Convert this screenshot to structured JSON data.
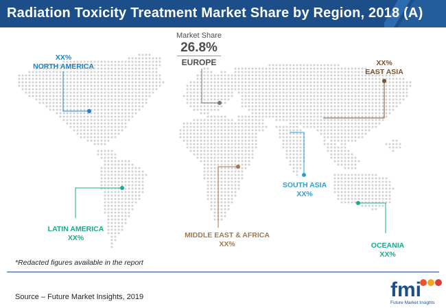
{
  "title": "Radiation Toxicity Treatment Market Share by Region, 2018 (A)",
  "chart_data": {
    "type": "map",
    "title": "Radiation Toxicity Treatment Market Share by Region, 2018 (A)",
    "highlight": {
      "caption": "Market Share",
      "value": "26.8%",
      "region": "EUROPE"
    },
    "regions": [
      {
        "key": "north_america",
        "name": "NORTH AMERICA",
        "value": "XX%",
        "color": "#1f82c4"
      },
      {
        "key": "latin_america",
        "name": "LATIN AMERICA",
        "value": "XX%",
        "color": "#19a98a"
      },
      {
        "key": "middle_east_africa",
        "name": "MIDDLE EAST & AFRICA",
        "value": "XX%",
        "color": "#a0794f"
      },
      {
        "key": "east_asia",
        "name": "EAST ASIA",
        "value": "XX%",
        "color": "#7a5230"
      },
      {
        "key": "south_asia",
        "name": "SOUTH ASIA",
        "value": "XX%",
        "color": "#2a9fd6"
      },
      {
        "key": "oceania",
        "name": "OCEANIA",
        "value": "XX%",
        "color": "#19a98a"
      }
    ],
    "europe_color": "#777777"
  },
  "footnote": "*Redacted figures available in the report",
  "source": "Source – Future Market Insights, 2019",
  "logo": {
    "wordmark": "fmi",
    "tagline": "Future Market Insights"
  },
  "colors": {
    "header": "#1c4f8a",
    "dots": "#cfcfcf"
  }
}
